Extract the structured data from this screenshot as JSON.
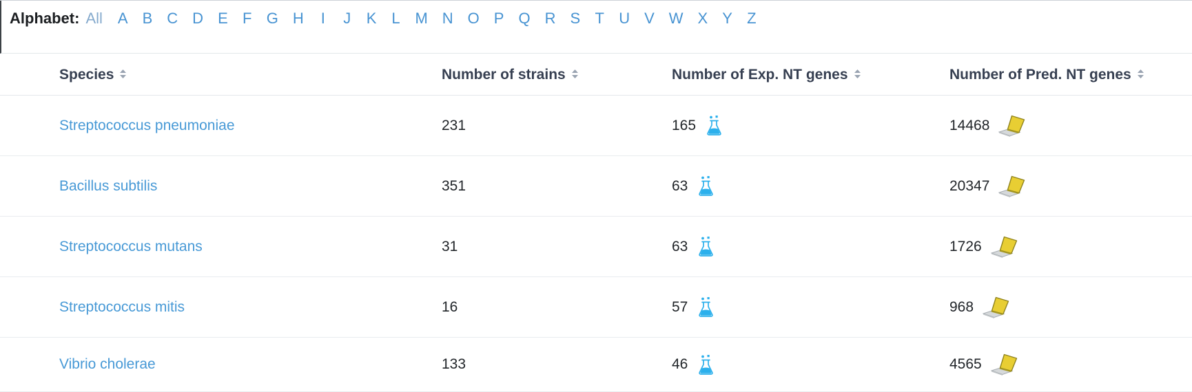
{
  "alphabet": {
    "label": "Alphabet:",
    "all_label": "All",
    "letters": [
      "A",
      "B",
      "C",
      "D",
      "E",
      "F",
      "G",
      "H",
      "I",
      "J",
      "K",
      "L",
      "M",
      "N",
      "O",
      "P",
      "Q",
      "R",
      "S",
      "T",
      "U",
      "V",
      "W",
      "X",
      "Y",
      "Z"
    ]
  },
  "table": {
    "columns": [
      {
        "label": "Species",
        "sortable": true
      },
      {
        "label": "Number of strains",
        "sortable": true
      },
      {
        "label": "Number of Exp. NT genes",
        "sortable": true
      },
      {
        "label": "Number of Pred. NT genes",
        "sortable": true
      }
    ],
    "rows": [
      {
        "species": "Streptococcus pneumoniae",
        "strains": "231",
        "exp_nt_genes": "165",
        "pred_nt_genes": "14468"
      },
      {
        "species": "Bacillus subtilis",
        "strains": "351",
        "exp_nt_genes": "63",
        "pred_nt_genes": "20347"
      },
      {
        "species": "Streptococcus mutans",
        "strains": "31",
        "exp_nt_genes": "63",
        "pred_nt_genes": "1726"
      },
      {
        "species": "Streptococcus mitis",
        "strains": "16",
        "exp_nt_genes": "57",
        "pred_nt_genes": "968"
      },
      {
        "species": "Vibrio cholerae",
        "strains": "133",
        "exp_nt_genes": "46",
        "pred_nt_genes": "4565"
      }
    ]
  },
  "icons": {
    "exp_column_icon": "flask-icon",
    "pred_column_icon": "laptop-icon",
    "header_icon": "sort-icon"
  },
  "colors": {
    "link_blue": "#4799d6",
    "all_link_muted": "#85aacd",
    "header_text": "#363f51",
    "body_text": "#212529",
    "divider": "#e9ecef",
    "sort_caret": "#99a3b1",
    "flask_blue": "#2cb0ec",
    "laptop_yellow": "#e8ce33"
  }
}
